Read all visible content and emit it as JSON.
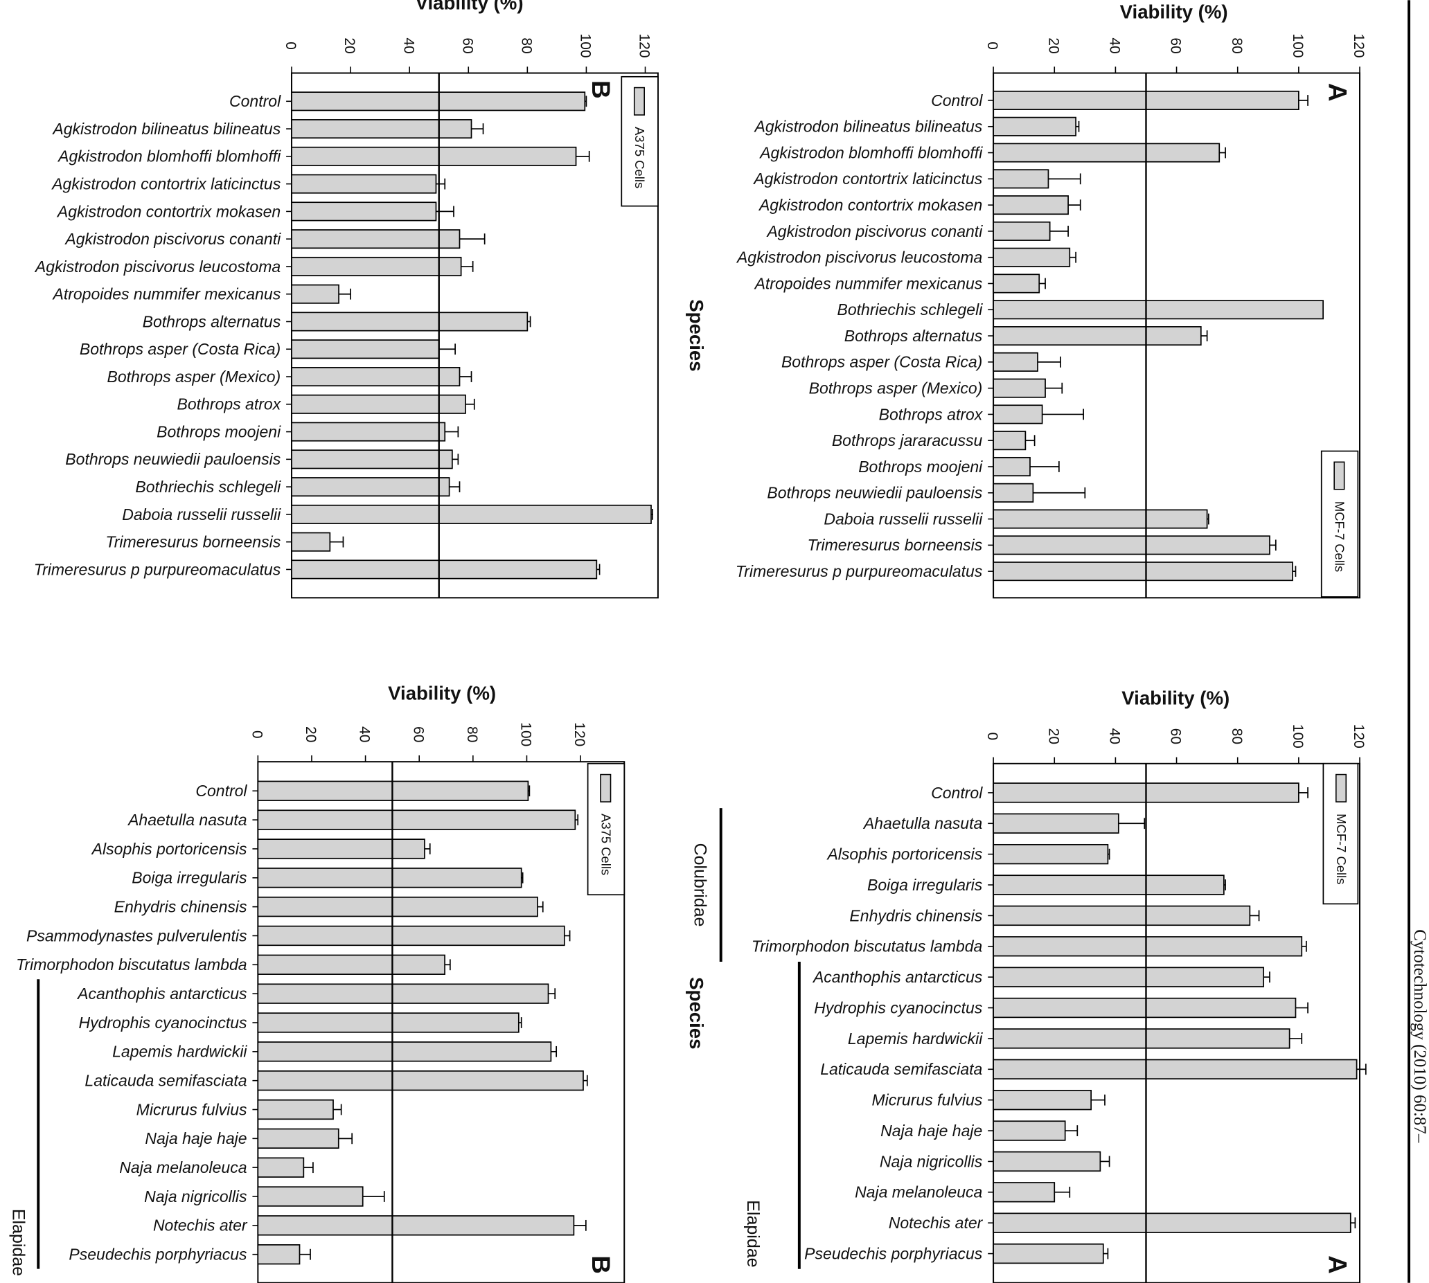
{
  "page": {
    "running_header": "Cytotechnology (2010) 60:87–",
    "bar_color": "#d3d3d3",
    "outline_color": "#000000"
  },
  "chart_data": [
    {
      "id": "A-crotalinae",
      "type": "bar",
      "orientation": "horizontal",
      "panel_letter": "A",
      "legend": "MCF-7 Cells",
      "xlabel": "Viability (%)",
      "ylabel": "Species",
      "xlim": [
        0,
        120
      ],
      "xticks": [
        "0",
        "20",
        "40",
        "60",
        "80",
        "100",
        "120"
      ],
      "reference_line": 50,
      "categories": [
        "Control",
        "Agkistrodon bilineatus bilineatus",
        "Agkistrodon blomhoffi blomhoffi",
        "Agkistrodon contortrix laticinctus",
        "Agkistrodon contortrix mokasen",
        "Agkistrodon piscivorus conanti",
        "Agkistrodon piscivorus leucostoma",
        "Atropoides nummifer mexicanus",
        "Bothriechis schlegeli",
        "Bothrops alternatus",
        "Bothrops asper (Costa Rica)",
        "Bothrops asper (Mexico)",
        "Bothrops atrox",
        "Bothrops jararacussu",
        "Bothrops moojeni",
        "Bothrops neuwiedii pauloensis",
        "Daboia russelii russelii",
        "Trimeresurus borneensis",
        "Trimeresurus p purpureomaculatus"
      ],
      "values": [
        100,
        27,
        74,
        18,
        24.5,
        18.5,
        25,
        15,
        108,
        68,
        14.5,
        17,
        16,
        10.5,
        12,
        13,
        70,
        90.5,
        98
      ],
      "errors": [
        3,
        1,
        2,
        10.5,
        4,
        6,
        2,
        2,
        0,
        2,
        7.5,
        5.5,
        13.5,
        3,
        9.5,
        17,
        0.5,
        2,
        1
      ],
      "groups": []
    },
    {
      "id": "B-crotalinae",
      "type": "bar",
      "orientation": "horizontal",
      "panel_letter": "B",
      "legend": "A375 Cells",
      "xlabel": "Viability (%)",
      "ylabel": "",
      "xlim": [
        0,
        120
      ],
      "xticks": [
        "0",
        "20",
        "40",
        "60",
        "80",
        "100",
        "120"
      ],
      "reference_line": 50,
      "categories": [
        "Control",
        "Agkistrodon bilineatus bilineatus",
        "Agkistrodon blomhoffi blomhoffi",
        "Agkistrodon contortrix laticinctus",
        "Agkistrodon contortrix mokasen",
        "Agkistrodon piscivorus conanti",
        "Agkistrodon piscivorus leucostoma",
        "Atropoides nummifer mexicanus",
        "Bothrops alternatus",
        "Bothrops  asper (Costa Rica)",
        "Bothrops asper (Mexico)",
        "Bothrops atrox",
        "Bothrops moojeni",
        "Bothrops neuwiedii pauloensis",
        "Bothriechis schlegeli",
        "Daboia russelii russelii",
        "Trimeresurus borneensis",
        "Trimeresurus p purpureomaculatus"
      ],
      "values": [
        99.5,
        61,
        96.5,
        49,
        49,
        57,
        57.5,
        16,
        80,
        50,
        57,
        59,
        52,
        54.5,
        53.5,
        122,
        13,
        103.5
      ],
      "errors": [
        0.5,
        4,
        4.5,
        3,
        6,
        8.5,
        4,
        4,
        1,
        5.5,
        4,
        3,
        4.5,
        2,
        3.5,
        0.5,
        4.5,
        1
      ],
      "groups": []
    },
    {
      "id": "A-colubridae-elapidae",
      "type": "bar",
      "orientation": "horizontal",
      "panel_letter": "A",
      "legend": "MCF-7 Cells",
      "xlabel": "Viability (%)",
      "ylabel": "Species",
      "xlim": [
        0,
        120
      ],
      "xticks": [
        "0",
        "20",
        "40",
        "60",
        "80",
        "100",
        "120"
      ],
      "reference_line": 50,
      "categories": [
        "Control",
        "Ahaetulla nasuta",
        "Alsophis portoricensis",
        "Boiga irregularis",
        "Enhydris chinensis",
        "Trimorphodon biscutatus lambda",
        "Acanthophis antarcticus",
        "Hydrophis cyanocinctus",
        "Lapemis hardwickii",
        "Laticauda semifasciata",
        "Micrurus fulvius",
        "Naja haje haje",
        "Naja nigricollis",
        "Naja melanoleuca",
        "Notechis ater",
        "Pseudechis porphyriacus"
      ],
      "values": [
        100,
        41,
        37.5,
        75.5,
        84,
        101,
        88.5,
        99,
        97,
        119,
        32,
        23.5,
        35,
        20,
        117,
        36
      ],
      "errors": [
        3,
        8.5,
        0.5,
        0.5,
        3,
        1.5,
        2,
        4,
        4,
        3,
        4.5,
        4,
        3,
        5,
        1.5,
        1.5
      ],
      "groups": [
        {
          "name": "Colubridae",
          "from": 1,
          "to": 5
        },
        {
          "name": "Elapidae",
          "from": 6,
          "to": 15
        }
      ]
    },
    {
      "id": "B-colubridae-elapidae",
      "type": "bar",
      "orientation": "horizontal",
      "panel_letter": "B",
      "legend": "A375 Cells",
      "xlabel": "Viability (%)",
      "ylabel": "",
      "xlim": [
        0,
        120
      ],
      "xticks": [
        "0",
        "20",
        "40",
        "60",
        "80",
        "100",
        "120"
      ],
      "reference_line": 50,
      "categories": [
        "Control",
        "Ahaetulla nasuta",
        "Alsophis portoricensis",
        "Boiga irregularis",
        "Enhydris chinensis",
        "Psammodynastes pulverulentis",
        "Trimorphodon biscutatus lambda",
        "Acanthophis antarcticus",
        "Hydrophis cyanocinctus",
        "Lapemis hardwickii",
        "Laticauda semifasciata",
        "Micrurus fulvius",
        "Naja haje haje",
        "Naja melanoleuca",
        "Naja nigricollis",
        "Notechis ater",
        "Pseudechis porphyriacus"
      ],
      "values": [
        100.5,
        118,
        62,
        98,
        104,
        114,
        69.5,
        108,
        97,
        109,
        121,
        28,
        30,
        17,
        39,
        117.5,
        15.5
      ],
      "errors": [
        0.5,
        1,
        2,
        0.5,
        2,
        2,
        2,
        2.5,
        1,
        2,
        1.5,
        3,
        5,
        3.5,
        8,
        4.5,
        4
      ],
      "groups": [
        {
          "name": "Elapidae",
          "from": 7,
          "to": 16
        }
      ]
    }
  ]
}
